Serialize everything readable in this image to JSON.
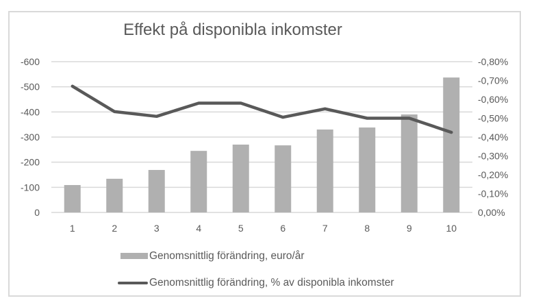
{
  "chart_data": {
    "type": "bar+line",
    "title": "Effekt på disponibla inkomster",
    "categories": [
      "1",
      "2",
      "3",
      "4",
      "5",
      "6",
      "7",
      "8",
      "9",
      "10"
    ],
    "series": [
      {
        "name": "Genomsnittlig förändring, euro/år",
        "type": "bar",
        "axis": "left",
        "color": "#b0b0b0",
        "values": [
          -109,
          -134,
          -169,
          -245,
          -270,
          -267,
          -330,
          -338,
          -390,
          -537
        ]
      },
      {
        "name": "Genomsnittlig förändring, % av disponibla inkomster",
        "type": "line",
        "axis": "right",
        "color": "#595959",
        "values": [
          -0.67,
          -0.535,
          -0.51,
          -0.58,
          -0.58,
          -0.505,
          -0.55,
          -0.5,
          -0.5,
          -0.425
        ]
      }
    ],
    "left_axis": {
      "range": [
        0,
        -600
      ],
      "ticks": [
        "-600",
        "-500",
        "-400",
        "-300",
        "-200",
        "-100",
        "0"
      ]
    },
    "right_axis": {
      "range": [
        0,
        -0.8
      ],
      "ticks": [
        "-0,80%",
        "-0,70%",
        "-0,60%",
        "-0,50%",
        "-0,40%",
        "-0,30%",
        "-0,20%",
        "-0,10%",
        "0,00%"
      ]
    },
    "xlabel": "",
    "ylabel": "",
    "grid": true,
    "legend_position": "bottom"
  },
  "legend": {
    "bar_label": "Genomsnittlig förändring, euro/år",
    "line_label": "Genomsnittlig förändring, % av disponibla inkomster"
  }
}
